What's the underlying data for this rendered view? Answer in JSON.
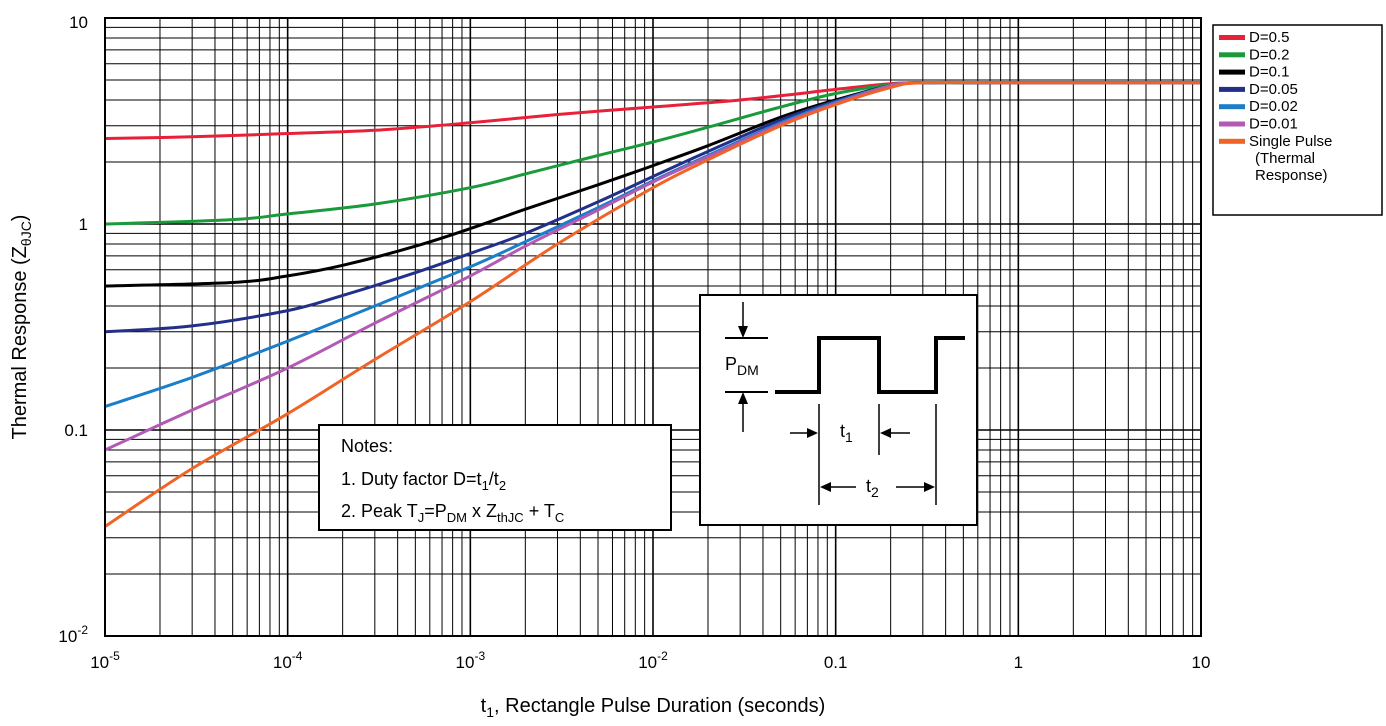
{
  "chart_data": {
    "type": "line",
    "title": "",
    "xlabel": {
      "main": "t",
      "sub": "1",
      "rest": ", Rectangle Pulse Duration (seconds)"
    },
    "ylabel": {
      "main": "Thermal Response (Z",
      "sub": "θJC",
      "rest": ")"
    },
    "x_scale": "log",
    "y_scale": "log",
    "xlim": [
      1e-05,
      10
    ],
    "ylim": [
      0.01,
      10
    ],
    "grid": true,
    "legend_position": "right",
    "x_ticks": [
      {
        "value": 1e-05,
        "base": "10",
        "exp": "-5",
        "label": ""
      },
      {
        "value": 0.0001,
        "base": "10",
        "exp": "-4",
        "label": ""
      },
      {
        "value": 0.001,
        "base": "10",
        "exp": "-3",
        "label": ""
      },
      {
        "value": 0.01,
        "base": "10",
        "exp": "-2",
        "label": ""
      },
      {
        "value": 0.1,
        "base": "",
        "exp": "",
        "label": "0.1"
      },
      {
        "value": 1,
        "base": "",
        "exp": "",
        "label": "1"
      },
      {
        "value": 10,
        "base": "",
        "exp": "",
        "label": "10"
      }
    ],
    "y_ticks": [
      {
        "value": 10,
        "base": "",
        "exp": "",
        "label": "10"
      },
      {
        "value": 1,
        "base": "",
        "exp": "",
        "label": "1"
      },
      {
        "value": 0.1,
        "base": "",
        "exp": "",
        "label": "0.1"
      },
      {
        "value": 0.01,
        "base": "10",
        "exp": "-2",
        "label": ""
      }
    ],
    "series": [
      {
        "name": "D=0.5",
        "color": "#e8203a",
        "x": [
          1e-05,
          3e-05,
          0.0001,
          0.0003,
          0.001,
          0.003,
          0.01,
          0.03,
          0.1,
          0.2,
          0.3,
          1,
          10
        ],
        "y": [
          2.6,
          2.65,
          2.75,
          2.85,
          3.1,
          3.4,
          3.7,
          4.0,
          4.5,
          4.8,
          4.85,
          4.85,
          4.85
        ]
      },
      {
        "name": "D=0.2",
        "color": "#1a9a3a",
        "x": [
          1e-05,
          5e-05,
          0.0001,
          0.0003,
          0.001,
          0.002,
          0.005,
          0.01,
          0.02,
          0.05,
          0.1,
          0.2,
          0.3,
          1,
          10
        ],
        "y": [
          1.0,
          1.05,
          1.12,
          1.25,
          1.5,
          1.75,
          2.15,
          2.5,
          2.95,
          3.7,
          4.3,
          4.75,
          4.85,
          4.85,
          4.85
        ]
      },
      {
        "name": "D=0.1",
        "color": "#000000",
        "x": [
          1e-05,
          5e-05,
          0.0001,
          0.0002,
          0.0005,
          0.001,
          0.002,
          0.005,
          0.01,
          0.02,
          0.05,
          0.1,
          0.2,
          0.3,
          1,
          10
        ],
        "y": [
          0.5,
          0.52,
          0.56,
          0.63,
          0.78,
          0.95,
          1.18,
          1.55,
          1.92,
          2.4,
          3.3,
          4.0,
          4.7,
          4.85,
          4.85,
          4.85
        ]
      },
      {
        "name": "D=0.05",
        "color": "#22308a",
        "x": [
          1e-05,
          3e-05,
          0.0001,
          0.0002,
          0.0005,
          0.001,
          0.002,
          0.005,
          0.01,
          0.02,
          0.05,
          0.1,
          0.2,
          0.3,
          1,
          10
        ],
        "y": [
          0.3,
          0.32,
          0.38,
          0.45,
          0.58,
          0.72,
          0.9,
          1.28,
          1.7,
          2.25,
          3.2,
          3.95,
          4.7,
          4.85,
          4.85,
          4.85
        ]
      },
      {
        "name": "D=0.02",
        "color": "#1a7ec8",
        "x": [
          1e-05,
          3e-05,
          0.0001,
          0.0003,
          0.001,
          0.002,
          0.005,
          0.01,
          0.02,
          0.05,
          0.1,
          0.2,
          0.3,
          1,
          10
        ],
        "y": [
          0.13,
          0.18,
          0.27,
          0.4,
          0.62,
          0.82,
          1.2,
          1.62,
          2.15,
          3.1,
          3.9,
          4.7,
          4.85,
          4.85,
          4.85
        ]
      },
      {
        "name": "D=0.01",
        "color": "#b25ab4",
        "x": [
          1e-05,
          3e-05,
          0.0001,
          0.0003,
          0.001,
          0.002,
          0.005,
          0.01,
          0.02,
          0.05,
          0.1,
          0.2,
          0.3,
          1,
          10
        ],
        "y": [
          0.08,
          0.125,
          0.2,
          0.33,
          0.56,
          0.78,
          1.17,
          1.6,
          2.12,
          3.05,
          3.85,
          4.7,
          4.85,
          4.85,
          4.85
        ]
      },
      {
        "name": "Single Pulse (Thermal Response)",
        "color": "#f06428",
        "x": [
          1e-05,
          3e-05,
          0.0001,
          0.0003,
          0.001,
          0.003,
          0.01,
          0.02,
          0.05,
          0.1,
          0.2,
          0.3,
          1,
          10
        ],
        "y": [
          0.034,
          0.065,
          0.12,
          0.22,
          0.42,
          0.8,
          1.5,
          2.05,
          3.0,
          3.8,
          4.6,
          4.85,
          4.85,
          4.85
        ]
      }
    ],
    "legend": [
      {
        "lines": [
          "D=0.5"
        ],
        "color": "#e8203a"
      },
      {
        "lines": [
          "D=0.2"
        ],
        "color": "#1a9a3a"
      },
      {
        "lines": [
          "D=0.1"
        ],
        "color": "#000000"
      },
      {
        "lines": [
          "D=0.05"
        ],
        "color": "#22308a"
      },
      {
        "lines": [
          "D=0.02"
        ],
        "color": "#1a7ec8"
      },
      {
        "lines": [
          "D=0.01"
        ],
        "color": "#b25ab4"
      },
      {
        "lines": [
          "Single Pulse",
          "(Thermal",
          "Response)"
        ],
        "color": "#f06428"
      }
    ],
    "notes": {
      "heading": "Notes:",
      "line1": {
        "prefix": "1.  Duty factor D=t",
        "sub1": "1",
        "mid": "/t",
        "sub2": "2"
      },
      "line2": {
        "prefix": "2.  Peak T",
        "sub1": "J",
        "mid1": "=P",
        "sub2": "DM",
        "mid2": " x Z",
        "sub3": "thJC",
        "mid3": " + T",
        "sub4": "C"
      }
    },
    "pulse_diagram": {
      "pdm_main": "P",
      "pdm_sub": "DM",
      "t1_main": "t",
      "t1_sub": "1",
      "t2_main": "t",
      "t2_sub": "2"
    }
  }
}
